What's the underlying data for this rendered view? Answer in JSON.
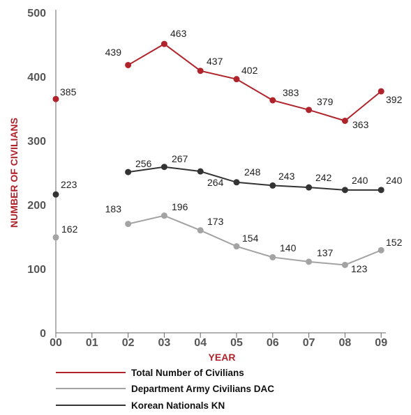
{
  "chart_data": {
    "type": "line",
    "xlabel": "YEAR",
    "ylabel": "NUMBER OF CIVILIANS",
    "categories": [
      "00",
      "01",
      "02",
      "03",
      "04",
      "05",
      "06",
      "07",
      "08",
      "09"
    ],
    "ylim": [
      0,
      500
    ],
    "yticks": [
      0,
      100,
      200,
      300,
      400,
      500
    ],
    "grid": false,
    "legend_position": "bottom",
    "series": [
      {
        "name": "Total Number of Civilians",
        "color": "#b0232a",
        "values": [
          385,
          null,
          439,
          463,
          437,
          402,
          383,
          379,
          363,
          392
        ],
        "plotted": [
          365,
          null,
          418,
          451,
          409,
          396,
          363,
          348,
          331,
          377
        ]
      },
      {
        "name": "Department Army Civilians DAC",
        "color": "#a3a3a3",
        "values": [
          162,
          null,
          183,
          196,
          173,
          154,
          140,
          137,
          123,
          152
        ],
        "plotted": [
          149,
          null,
          170,
          183,
          160,
          135,
          118,
          111,
          106,
          129
        ]
      },
      {
        "name": "Korean Nationals KN",
        "color": "#333333",
        "values": [
          223,
          null,
          256,
          267,
          264,
          248,
          243,
          242,
          240,
          240
        ],
        "plotted": [
          216,
          null,
          251,
          259,
          252,
          235,
          230,
          227,
          223,
          223
        ]
      }
    ]
  }
}
